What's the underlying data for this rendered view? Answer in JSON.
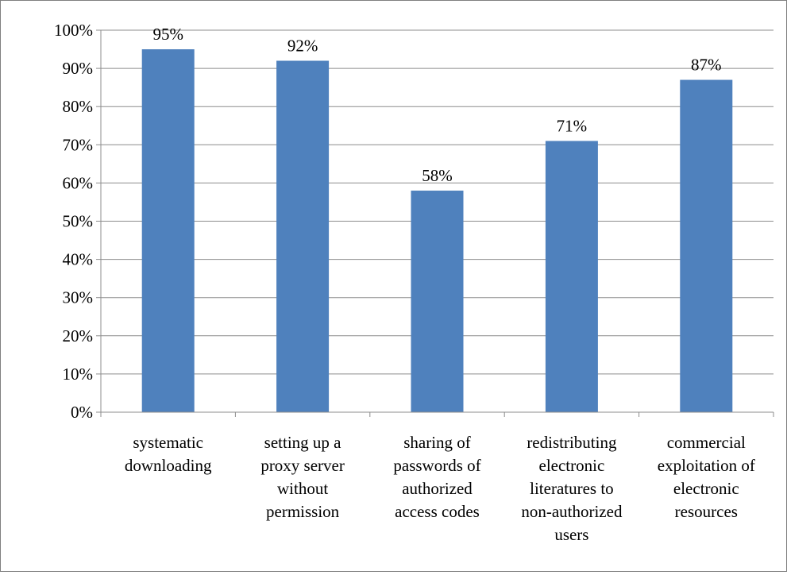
{
  "chart_data": {
    "type": "bar",
    "title": "",
    "xlabel": "",
    "ylabel": "",
    "categories": [
      [
        "systematic",
        "downloading"
      ],
      [
        "setting up a",
        "proxy server",
        "without",
        "permission"
      ],
      [
        "sharing of",
        "passwords of",
        "authorized",
        "access codes"
      ],
      [
        "redistributing",
        "electronic",
        "literatures to",
        "non-authorized",
        "users"
      ],
      [
        "commercial",
        "exploitation of",
        "electronic",
        "resources"
      ]
    ],
    "values": [
      95,
      92,
      58,
      71,
      87
    ],
    "data_labels": [
      "95%",
      "92%",
      "58%",
      "71%",
      "87%"
    ],
    "ylim": [
      0,
      100
    ],
    "yticks": [
      0,
      10,
      20,
      30,
      40,
      50,
      60,
      70,
      80,
      90,
      100
    ],
    "ytick_labels": [
      "0%",
      "10%",
      "20%",
      "30%",
      "40%",
      "50%",
      "60%",
      "70%",
      "80%",
      "90%",
      "100%"
    ],
    "grid": true,
    "legend": "none",
    "bar_color": "#4f81bd",
    "grid_color": "#8c8c8c"
  }
}
